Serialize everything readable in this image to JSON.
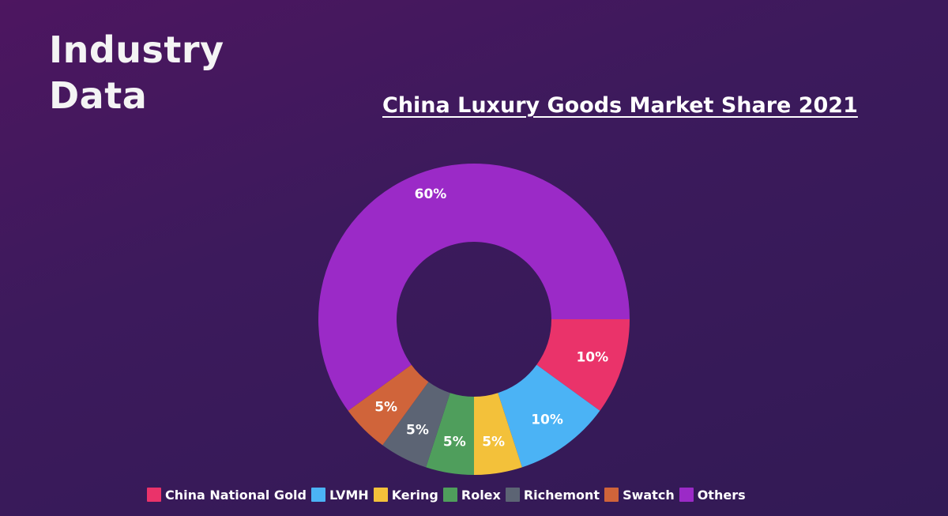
{
  "slide": {
    "heading_line1": "Industry",
    "heading_line2": "Data"
  },
  "chart_data": {
    "type": "pie",
    "title": "China Luxury Goods Market Share 2021",
    "donut": true,
    "legend_position": "bottom",
    "slices": [
      {
        "label": "China National Gold",
        "value": 10,
        "value_label": "10%",
        "color": "#ea336a"
      },
      {
        "label": "LVMH",
        "value": 10,
        "value_label": "10%",
        "color": "#4bb3f5"
      },
      {
        "label": "Kering",
        "value": 5,
        "value_label": "5%",
        "color": "#f3c13a"
      },
      {
        "label": "Rolex",
        "value": 5,
        "value_label": "5%",
        "color": "#4f9e5c"
      },
      {
        "label": "Richemont",
        "value": 5,
        "value_label": "5%",
        "color": "#5c6474"
      },
      {
        "label": "Swatch",
        "value": 5,
        "value_label": "5%",
        "color": "#d0643a"
      },
      {
        "label": "Others",
        "value": 60,
        "value_label": "60%",
        "color": "#9b2ac7"
      }
    ]
  },
  "colors": {
    "background": "#3c1a5c",
    "text": "#ffffff"
  }
}
